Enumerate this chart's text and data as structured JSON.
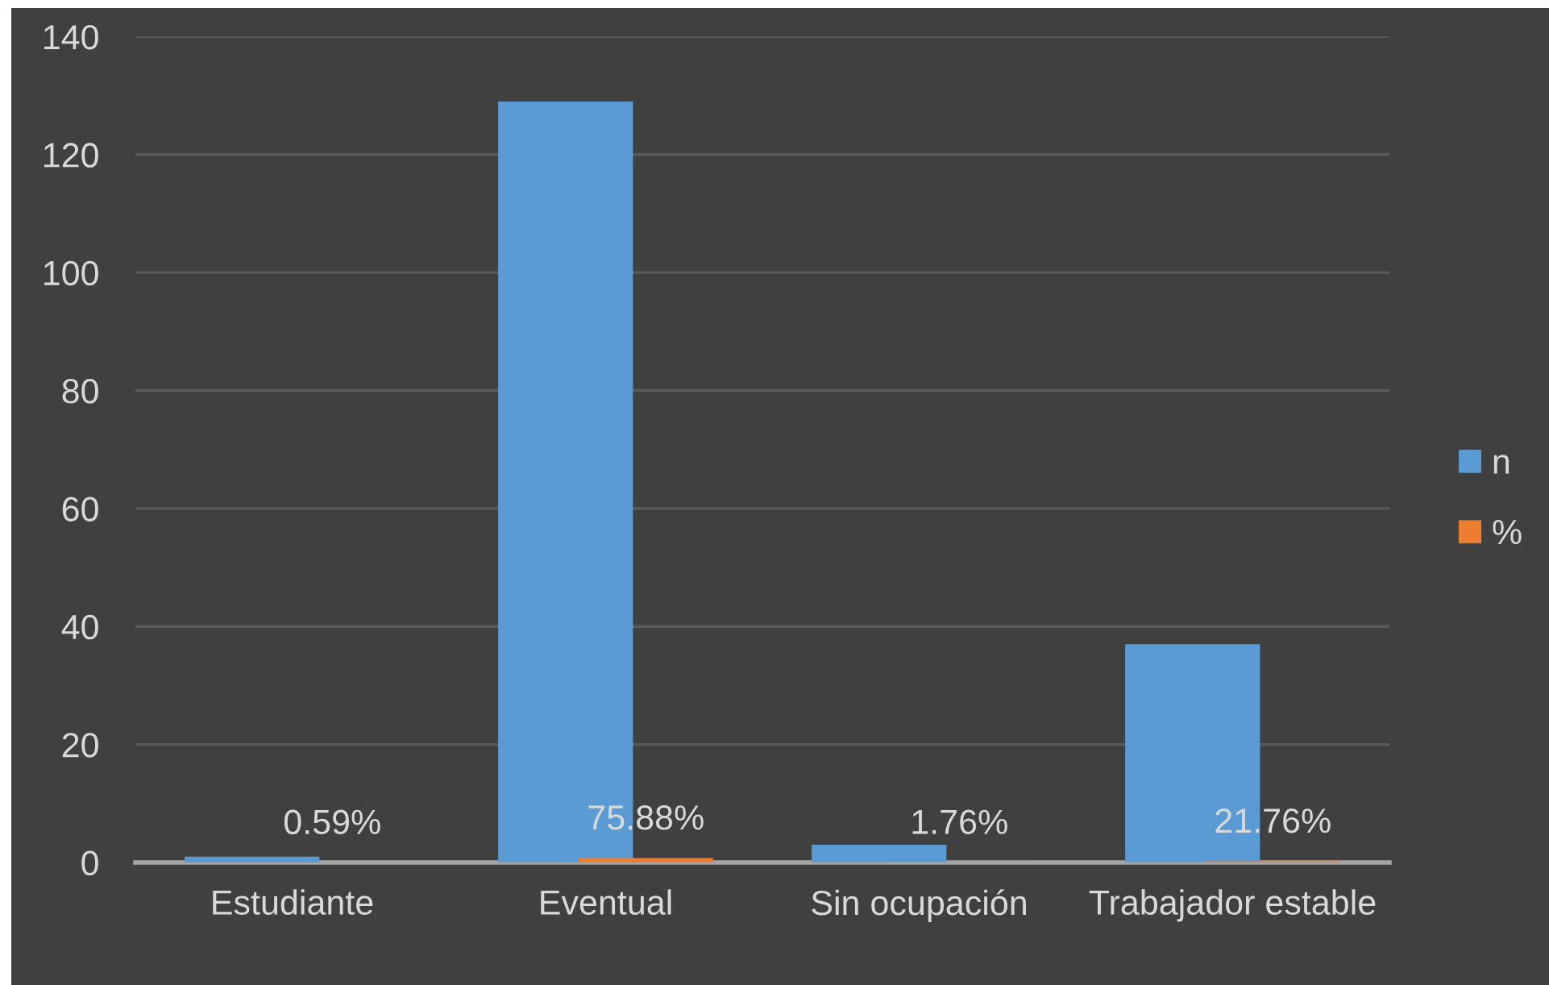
{
  "chart_data": {
    "type": "bar",
    "categories": [
      "Estudiante",
      "Eventual",
      "Sin ocupación",
      "Trabajador estable"
    ],
    "series": [
      {
        "name": "n",
        "color": "#5b9bd5",
        "values": [
          1,
          129,
          3,
          37
        ]
      },
      {
        "name": "%",
        "color": "#ed7d31",
        "values": [
          0.0059,
          0.7588,
          0.0176,
          0.2176
        ],
        "value_labels": [
          "0.59%",
          "75.88%",
          "1.76%",
          "21.76%"
        ]
      }
    ],
    "ylim": [
      0,
      140
    ],
    "yticks": [
      0,
      20,
      40,
      60,
      80,
      100,
      120,
      140
    ],
    "grid": "y",
    "legend": "right"
  }
}
